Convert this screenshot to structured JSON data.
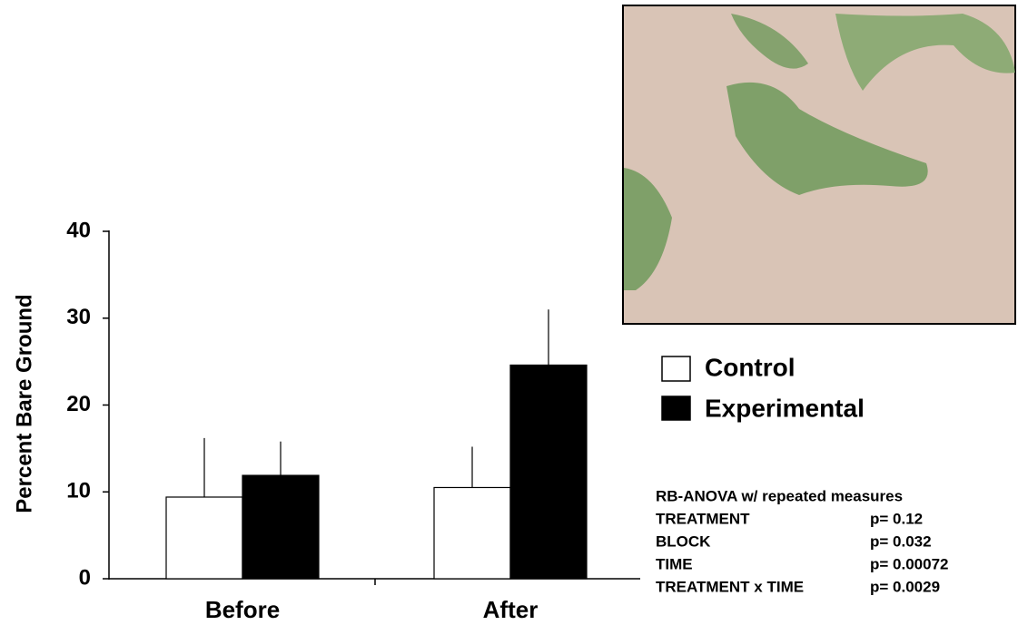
{
  "chart_data": {
    "type": "bar",
    "y_label": "Percent  Bare Ground",
    "categories": [
      "Before",
      "After"
    ],
    "series": [
      {
        "name": "Control",
        "color": "#ffffff",
        "values": [
          9.4,
          10.5
        ],
        "errors": [
          6.8,
          4.7
        ]
      },
      {
        "name": "Experimental",
        "color": "#000000",
        "values": [
          11.9,
          24.6
        ],
        "errors": [
          3.9,
          6.4
        ]
      }
    ],
    "ylim": [
      0,
      40
    ],
    "yticks": [
      0,
      10,
      20,
      30,
      40
    ],
    "stats": {
      "title": "RB-ANOVA w/ repeated measures",
      "rows": [
        {
          "term": "TREATMENT",
          "p": "p= 0.12"
        },
        {
          "term": "BLOCK",
          "p": "p= 0.032"
        },
        {
          "term": "TIME",
          "p": "p= 0.00072"
        },
        {
          "term": "TREATMENT x TIME",
          "p": "p= 0.0029"
        }
      ]
    }
  }
}
